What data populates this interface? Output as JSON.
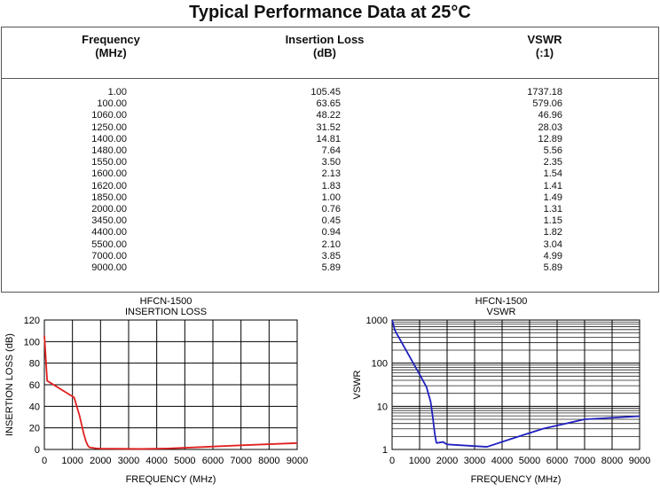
{
  "title": "Typical Performance Data at 25°C",
  "table": {
    "headers": [
      {
        "line1": "Frequency",
        "line2": "(MHz)"
      },
      {
        "line1": "Insertion Loss",
        "line2": "(dB)"
      },
      {
        "line1": "VSWR",
        "line2": "(:1)"
      }
    ],
    "rows": [
      [
        "1.00",
        "105.45",
        "1737.18"
      ],
      [
        "100.00",
        "63.65",
        "579.06"
      ],
      [
        "1060.00",
        "48.22",
        "46.96"
      ],
      [
        "1250.00",
        "31.52",
        "28.03"
      ],
      [
        "1400.00",
        "14.81",
        "12.89"
      ],
      [
        "1480.00",
        "7.64",
        "5.56"
      ],
      [
        "1550.00",
        "3.50",
        "2.35"
      ],
      [
        "1600.00",
        "2.13",
        "1.54"
      ],
      [
        "1620.00",
        "1.83",
        "1.41"
      ],
      [
        "1850.00",
        "1.00",
        "1.49"
      ],
      [
        "2000.00",
        "0.76",
        "1.31"
      ],
      [
        "3450.00",
        "0.45",
        "1.15"
      ],
      [
        "4400.00",
        "0.94",
        "1.82"
      ],
      [
        "5500.00",
        "2.10",
        "3.04"
      ],
      [
        "7000.00",
        "3.85",
        "4.99"
      ],
      [
        "9000.00",
        "5.89",
        "5.89"
      ]
    ]
  },
  "chart_data": [
    {
      "type": "line",
      "title": "HFCN-1500",
      "subtitle": "INSERTION LOSS",
      "xlabel": "FREQUENCY (MHz)",
      "ylabel": "INSERTION LOSS (dB)",
      "xlim": [
        0,
        9000
      ],
      "ylim": [
        0,
        120
      ],
      "grid": true,
      "color": "#e02020",
      "xticks": [
        0,
        1000,
        2000,
        3000,
        4000,
        5000,
        6000,
        7000,
        8000,
        9000
      ],
      "yticks": [
        0,
        20,
        40,
        60,
        80,
        100,
        120
      ],
      "x": [
        1,
        100,
        1060,
        1250,
        1400,
        1480,
        1550,
        1600,
        1620,
        1850,
        2000,
        3450,
        4400,
        5500,
        7000,
        9000
      ],
      "y": [
        105.45,
        63.65,
        48.22,
        31.52,
        14.81,
        7.64,
        3.5,
        2.13,
        1.83,
        1.0,
        0.76,
        0.45,
        0.94,
        2.1,
        3.85,
        5.89
      ]
    },
    {
      "type": "line",
      "title": "HFCN-1500",
      "subtitle": "VSWR",
      "xlabel": "FREQUENCY (MHz)",
      "ylabel": "VSWR",
      "xlim": [
        0,
        9000
      ],
      "ylim": [
        1,
        1000
      ],
      "yscale": "log",
      "grid": true,
      "color": "#2020c0",
      "xticks": [
        0,
        1000,
        2000,
        3000,
        4000,
        5000,
        6000,
        7000,
        8000,
        9000
      ],
      "yticks": [
        1,
        10,
        100,
        1000
      ],
      "x": [
        1,
        100,
        1060,
        1250,
        1400,
        1480,
        1550,
        1600,
        1620,
        1850,
        2000,
        3450,
        4400,
        5500,
        7000,
        9000
      ],
      "y": [
        1737.18,
        579.06,
        46.96,
        28.03,
        12.89,
        5.56,
        2.35,
        1.54,
        1.41,
        1.49,
        1.31,
        1.15,
        1.82,
        3.04,
        4.99,
        5.89
      ]
    }
  ]
}
